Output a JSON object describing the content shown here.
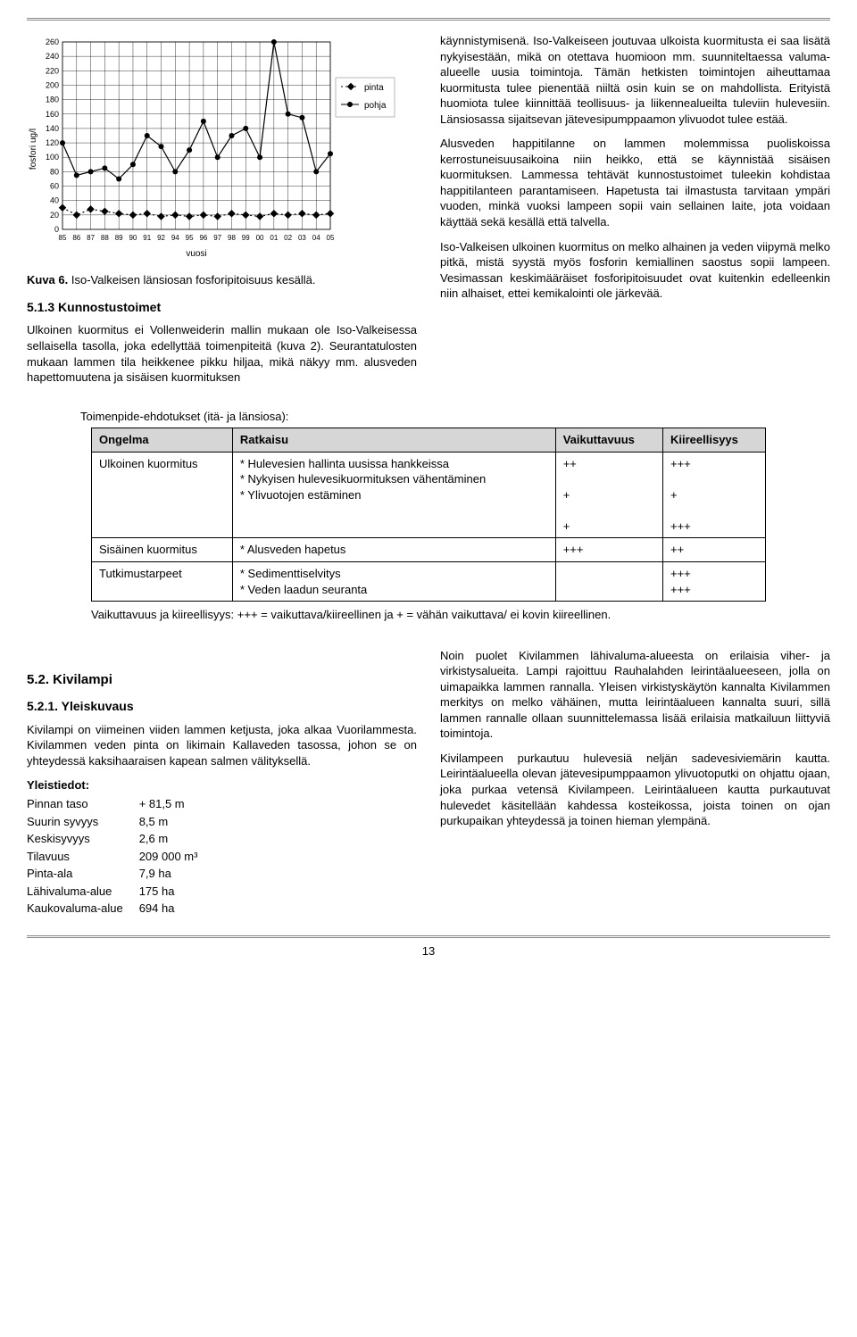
{
  "chart": {
    "type": "line",
    "ylabel": "fosfori ug/l",
    "xlabel": "vuosi",
    "categories": [
      "85",
      "86",
      "87",
      "88",
      "89",
      "90",
      "91",
      "92",
      "94",
      "95",
      "96",
      "97",
      "98",
      "99",
      "00",
      "01",
      "02",
      "03",
      "04",
      "05"
    ],
    "ylim": [
      0,
      260
    ],
    "ytick_step": 20,
    "yticks": [
      0,
      20,
      40,
      60,
      80,
      100,
      120,
      140,
      160,
      180,
      200,
      220,
      240,
      260
    ],
    "series": [
      {
        "name": "pinta",
        "color": "#000000",
        "dash": "2,3",
        "marker": "diamond",
        "values": [
          30,
          20,
          28,
          25,
          22,
          20,
          22,
          18,
          20,
          18,
          20,
          18,
          22,
          20,
          18,
          22,
          20,
          22,
          20,
          22
        ]
      },
      {
        "name": "pohja",
        "color": "#000000",
        "dash": "",
        "marker": "circle",
        "values": [
          120,
          75,
          80,
          85,
          70,
          90,
          130,
          115,
          80,
          110,
          150,
          100,
          130,
          140,
          100,
          260,
          160,
          155,
          80,
          105
        ]
      }
    ],
    "legend_labels": {
      "pinta": "pinta",
      "pohja": "pohja"
    },
    "plot_bg": "#ffffff",
    "grid_color": "#000000",
    "axis_fontsize": 9,
    "label_fontsize": 10
  },
  "caption_prefix": "Kuva 6.",
  "caption_text": " Iso-Valkeisen länsiosan fosforipitoisuus kesällä.",
  "sec513_title": "5.1.3 Kunnostustoimet",
  "left_p1": "Ulkoinen kuormitus ei Vollenweiderin mallin mukaan ole Iso-Valkeisessa sellaisella tasolla, joka edellyttää toimenpiteitä (kuva 2). Seurantatulosten mukaan lammen tila heikkenee pikku hiljaa, mikä näkyy mm. alusveden hapettomuutena ja sisäisen kuormituksen",
  "right_p1": "käynnistymisenä. Iso-Valkeiseen joutuvaa ulkoista kuormitusta ei saa lisätä nykyisestään, mikä on otettava huomioon mm. suunniteltaessa valuma-alueelle uusia toimintoja. Tämän hetkisten toimintojen aiheuttamaa kuormitusta tulee pienentää niiltä osin kuin se on mahdollista. Erityistä huomiota tulee kiinnittää teollisuus- ja liikennealueilta tuleviin hulevesiin. Länsiosassa sijaitsevan jätevesipumppaamon ylivuodot tulee estää.",
  "right_p2": "Alusveden happitilanne on lammen molemmissa puoliskoissa kerrostuneisuusaikoina niin heikko, että se käynnistää sisäisen kuormituksen. Lammessa tehtävät kunnostustoimet tuleekin kohdistaa happitilanteen parantamiseen. Hapetusta tai ilmastusta tarvitaan ympäri vuoden, minkä vuoksi lampeen sopii vain sellainen laite, jota voidaan käyttää sekä kesällä että talvella.",
  "right_p3": "Iso-Valkeisen ulkoinen kuormitus on melko alhainen ja veden viipymä melko pitkä, mistä syystä myös fosforin kemiallinen saostus sopii lampeen. Vesimassan keskimääräiset fosforipitoisuudet ovat kuitenkin edelleenkin niin alhaiset, ettei kemikalointi ole järkevää.",
  "table_intro": "Toimenpide-ehdotukset (itä- ja länsiosa):",
  "table": {
    "headers": [
      "Ongelma",
      "Ratkaisu",
      "Vaikuttavuus",
      "Kiireellisyys"
    ],
    "rows": [
      [
        "Ulkoinen kuormitus",
        "* Hulevesien hallinta uusissa hankkeissa\n* Nykyisen hulevesikuormituksen vähentäminen\n* Ylivuotojen estäminen",
        "++\n\n+\n\n+",
        "+++\n\n+\n\n+++"
      ],
      [
        "Sisäinen kuormitus",
        "* Alusveden hapetus",
        "+++",
        "++"
      ],
      [
        "Tutkimustarpeet",
        "* Sedimenttiselvitys\n* Veden laadun seuranta",
        "",
        "+++\n+++"
      ]
    ]
  },
  "table_note": "Vaikuttavuus ja kiireellisyys: +++ = vaikuttava/kiireellinen ja + = vähän vaikuttava/ ei kovin kiireellinen.",
  "sec52_title": "5.2. Kivilampi",
  "sec521_title": "5.2.1. Yleiskuvaus",
  "kivi_p1": "Kivilampi on viimeinen viiden lammen ketjusta, joka alkaa Vuorilammesta. Kivilammen veden pinta on likimain Kallaveden tasossa, johon se on yhteydessä kaksihaaraisen kapean salmen välityksellä.",
  "yleis_title": "Yleistiedot:",
  "yleis": {
    "rows": [
      [
        "Pinnan taso",
        "+ 81,5 m"
      ],
      [
        "Suurin syvyys",
        "8,5 m"
      ],
      [
        "Keskisyvyys",
        "2,6 m"
      ],
      [
        "Tilavuus",
        "209 000 m³"
      ],
      [
        "Pinta-ala",
        "7,9 ha"
      ],
      [
        "Lähivaluma-alue",
        "175 ha"
      ],
      [
        "Kaukovaluma-alue",
        "694 ha"
      ]
    ]
  },
  "kivi_r1": "Noin puolet Kivilammen lähivaluma-alueesta on erilaisia viher- ja virkistysalueita. Lampi rajoittuu Rauhalahden leirintäalueeseen, jolla on uimapaikka lammen rannalla. Yleisen virkistyskäytön kannalta Kivilammen merkitys on melko vähäinen, mutta leirintäalueen kannalta suuri, sillä lammen rannalle ollaan suunnittelemassa lisää erilaisia matkailuun liittyviä toimintoja.",
  "kivi_r2": "Kivilampeen purkautuu hulevesiä neljän sadevesiviemärin kautta. Leirintäalueella olevan jätevesipumppaamon ylivuotoputki on ohjattu ojaan, joka purkaa vetensä Kivilampeen. Leirintäalueen kautta purkautuvat hulevedet käsitellään kahdessa kosteikossa, joista toinen on ojan purkupaikan yhteydessä ja toinen hieman ylempänä.",
  "page_number": "13"
}
